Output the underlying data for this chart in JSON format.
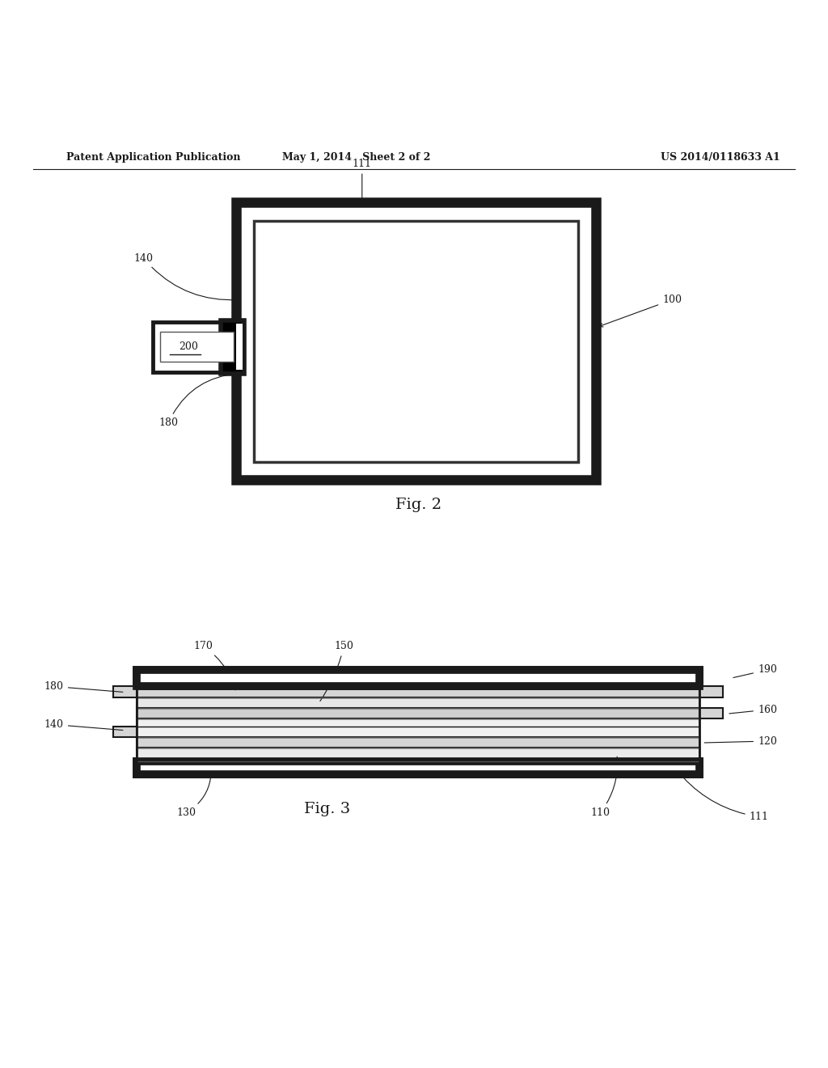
{
  "header_left": "Patent Application Publication",
  "header_mid": "May 1, 2014   Sheet 2 of 2",
  "header_right": "US 2014/0118633 A1",
  "fig2_caption": "Fig. 2",
  "fig3_caption": "Fig. 3",
  "bg_color": "#ffffff",
  "line_color": "#1a1a1a"
}
